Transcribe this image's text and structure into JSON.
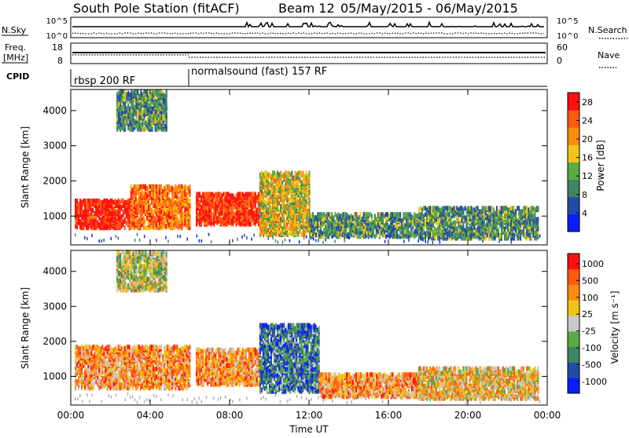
{
  "header": {
    "title": "South Pole Station (fitACF)",
    "beam": "Beam 12",
    "date_range": "05/May/2015 - 06/May/2015"
  },
  "nsky_panel": {
    "left_label": "N.Sky",
    "right_label": "N.Search",
    "left_ticks": [
      "10^5",
      "10^0"
    ],
    "right_ticks": [
      "10^5",
      "10^0"
    ]
  },
  "freq_panel": {
    "left_label_1": "Freq.",
    "left_label_2": "[MHz]",
    "right_label": "Nave",
    "left_ticks": [
      "18",
      "8"
    ],
    "right_ticks": [
      "60",
      "0"
    ]
  },
  "cpid_panel": {
    "label": "CPID",
    "segments": [
      {
        "start_hour": 0,
        "text": "rbsp 200 RF"
      },
      {
        "start_hour": 6,
        "text": "normalsound (fast) 157 RF"
      }
    ]
  },
  "colors": {
    "power_scale": [
      "#0a1cff",
      "#234aa8",
      "#3f8560",
      "#5aaa45",
      "#f2c418",
      "#ff8a10",
      "#ff5a10",
      "#ff1010"
    ],
    "velocity_scale": [
      "#ff1010",
      "#ff5a10",
      "#ff8a10",
      "#f2c418",
      "#c8c8c8",
      "#5aaa45",
      "#3f8560",
      "#234aa8",
      "#0a1cff"
    ],
    "ground_scatter": "#b0b0b0"
  },
  "chart_data": [
    {
      "type": "heatmap",
      "name": "power",
      "ylabel": "Slant Range [km]",
      "ylim": [
        180,
        4600
      ],
      "xlim_hours": [
        0,
        24
      ],
      "x_ticks": [
        "00:00",
        "04:00",
        "08:00",
        "12:00",
        "16:00",
        "20:00",
        "00:00"
      ],
      "y_ticks": [
        1000,
        2000,
        3000,
        4000
      ],
      "colorbar": {
        "label": "Power [dB]",
        "ticks": [
          "4",
          "8",
          "12",
          "16",
          "20",
          "24",
          "28"
        ],
        "range": [
          0,
          30
        ]
      },
      "echo_regions": [
        {
          "h0": 0.2,
          "h1": 3.0,
          "r0": 600,
          "r1": 1400,
          "level": 0.95
        },
        {
          "h0": 3.0,
          "h1": 6.0,
          "r0": 600,
          "r1": 1800,
          "level": 0.75
        },
        {
          "h0": 6.3,
          "h1": 9.5,
          "r0": 700,
          "r1": 1600,
          "level": 0.9
        },
        {
          "h0": 9.5,
          "h1": 12.0,
          "r0": 400,
          "r1": 2200,
          "level": 0.55
        },
        {
          "h0": 12.0,
          "h1": 17.5,
          "r0": 350,
          "r1": 1000,
          "level": 0.35
        },
        {
          "h0": 17.5,
          "h1": 23.5,
          "r0": 300,
          "r1": 1200,
          "level": 0.35
        },
        {
          "h0": 2.3,
          "h1": 4.8,
          "r0": 3400,
          "r1": 4500,
          "level": 0.35
        }
      ]
    },
    {
      "type": "heatmap",
      "name": "velocity",
      "ylabel": "Slant Range [km]",
      "ylim": [
        180,
        4600
      ],
      "xlim_hours": [
        0,
        24
      ],
      "x_ticks": [
        "00:00",
        "04:00",
        "08:00",
        "12:00",
        "16:00",
        "20:00",
        "00:00"
      ],
      "y_ticks": [
        1000,
        2000,
        3000,
        4000
      ],
      "xlabel": "Time UT",
      "colorbar": {
        "label": "Velocity [m s⁻¹]",
        "ticks": [
          "1000",
          "500",
          "100",
          "25",
          "-25",
          "-100",
          "-500",
          "-1000"
        ]
      },
      "echo_regions": [
        {
          "h0": 0.2,
          "h1": 6.0,
          "r0": 600,
          "r1": 1800,
          "level": 0.3
        },
        {
          "h0": 6.3,
          "h1": 9.5,
          "r0": 700,
          "r1": 1700,
          "level": 0.3
        },
        {
          "h0": 9.5,
          "h1": 12.5,
          "r0": 500,
          "r1": 2400,
          "level": 0.75
        },
        {
          "h0": 12.5,
          "h1": 17.5,
          "r0": 350,
          "r1": 1000,
          "level": 0.3
        },
        {
          "h0": 17.5,
          "h1": 23.5,
          "r0": 300,
          "r1": 1200,
          "level": 0.4
        },
        {
          "h0": 2.3,
          "h1": 4.8,
          "r0": 3400,
          "r1": 4500,
          "level": 0.5
        }
      ]
    }
  ]
}
